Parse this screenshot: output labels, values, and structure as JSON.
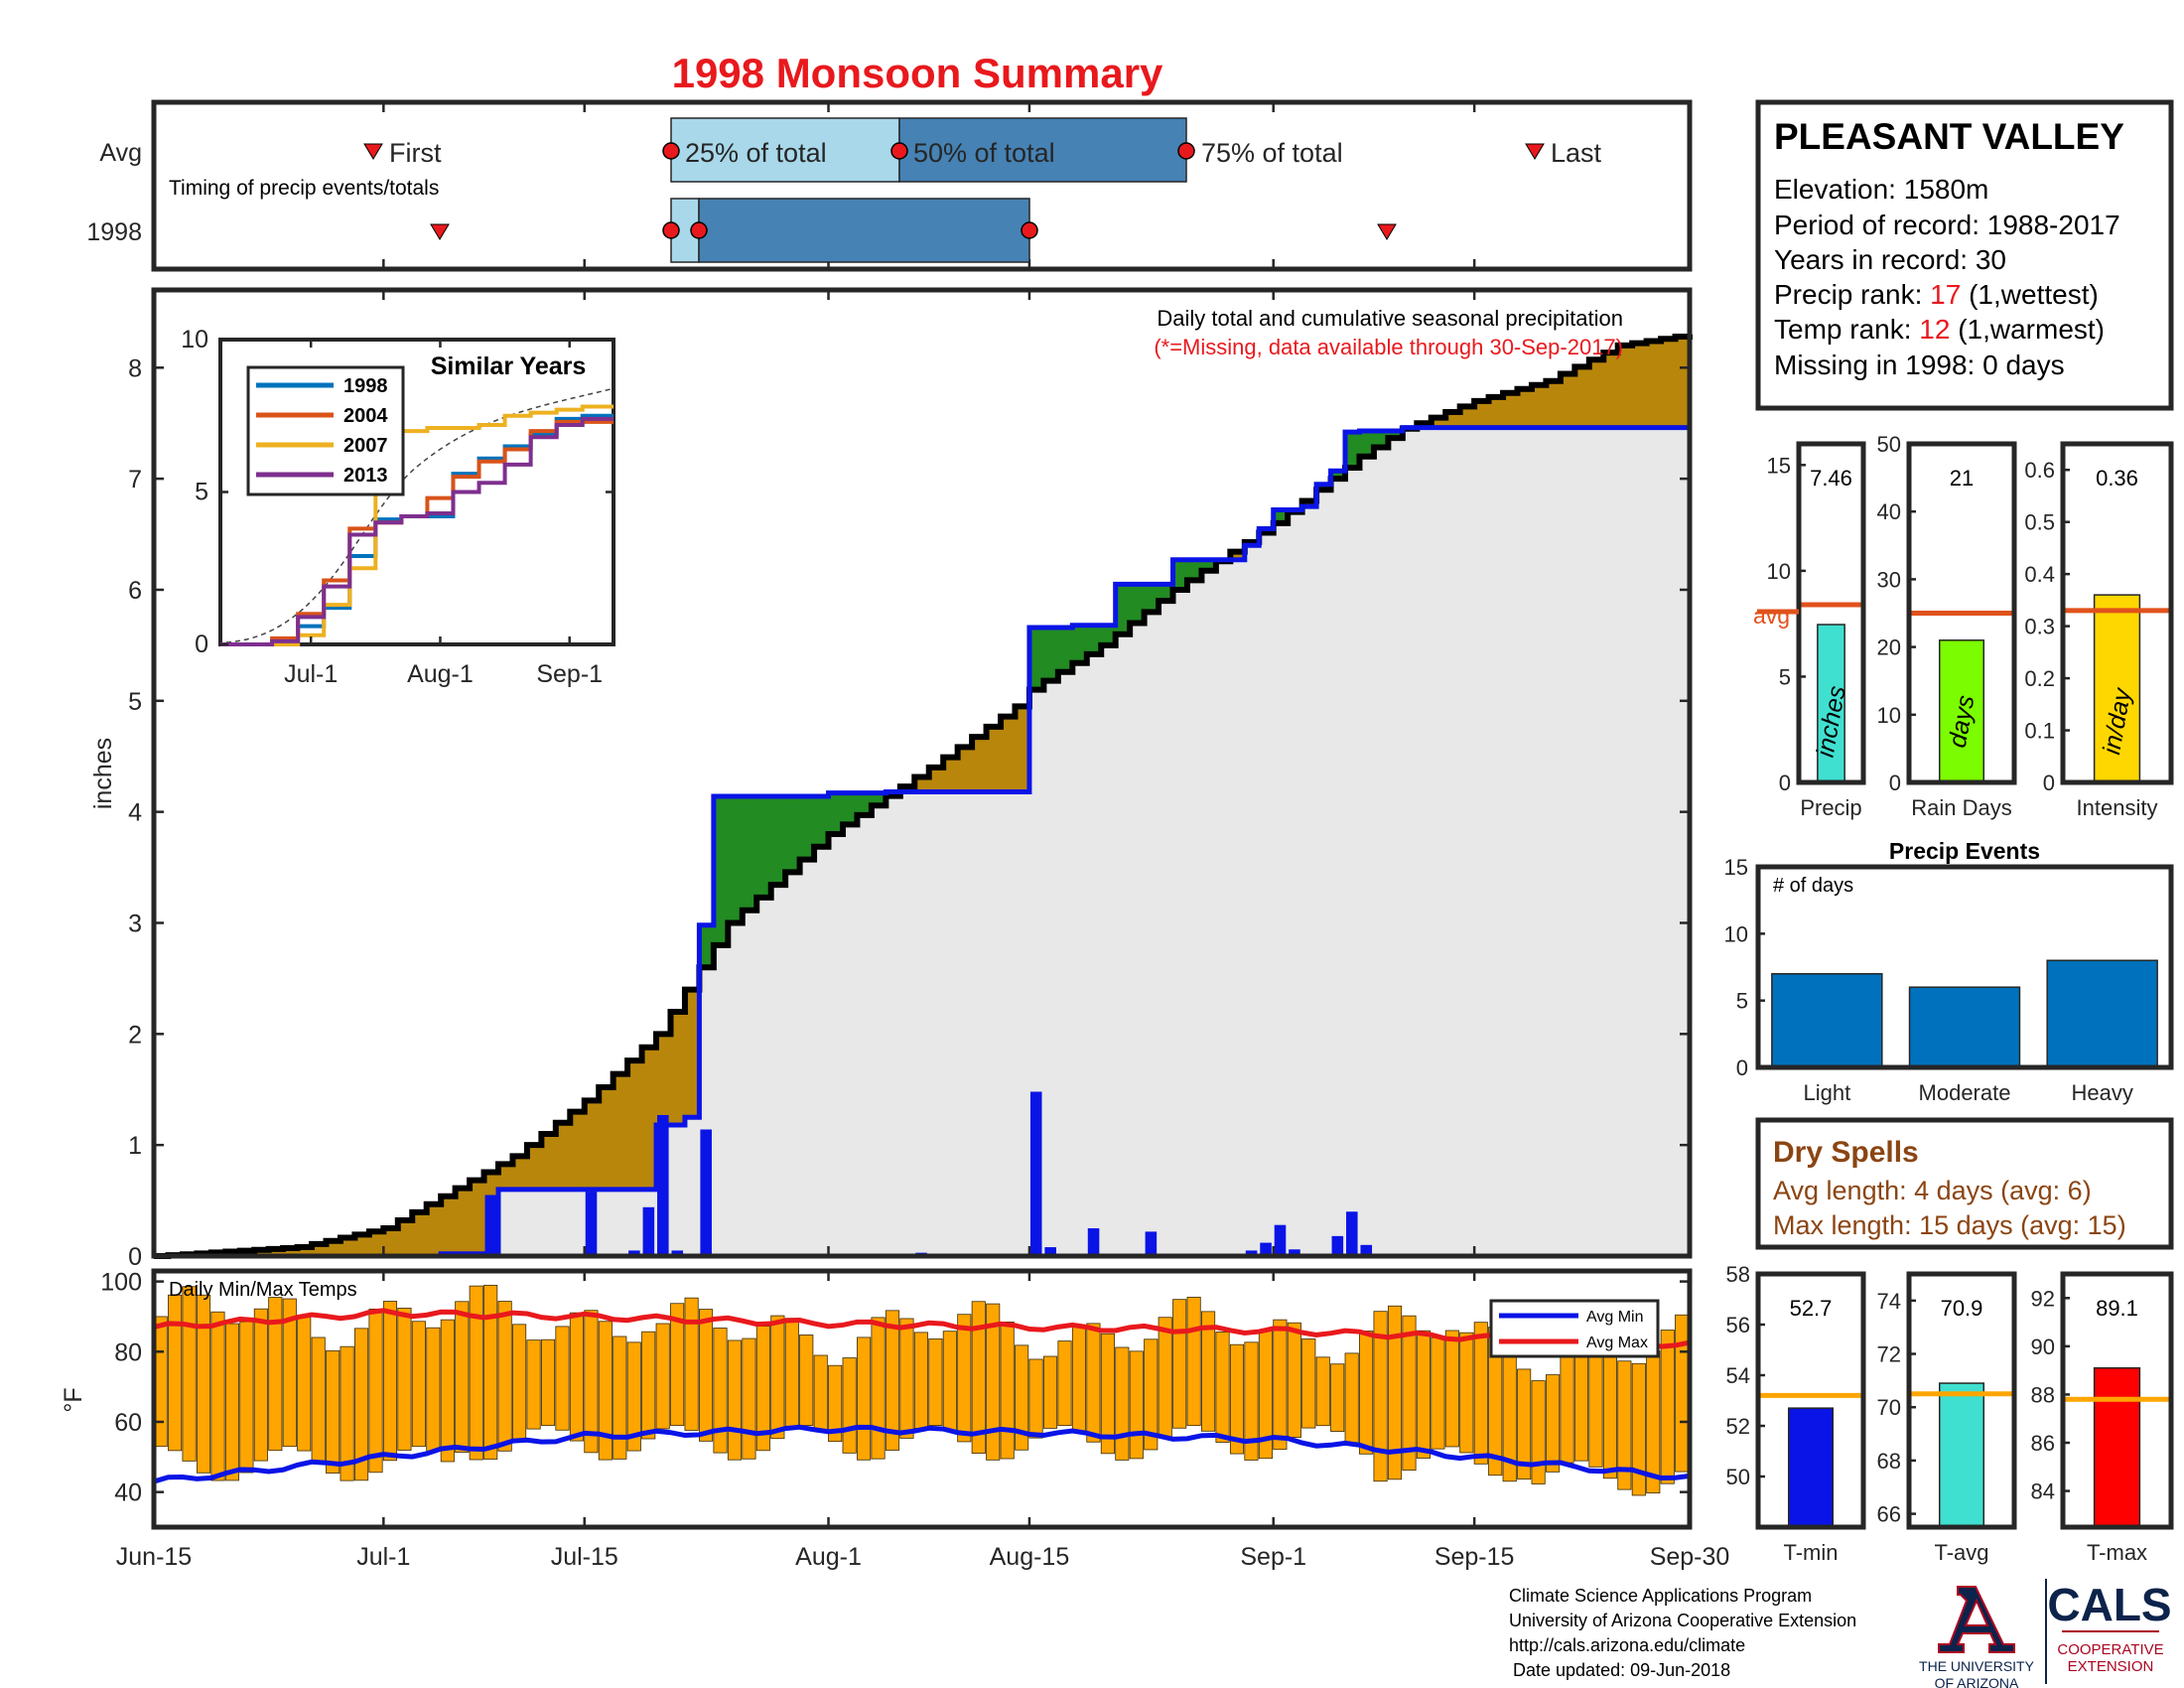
{
  "page_title": "1998 Monsoon Summary",
  "station": {
    "name": "PLEASANT VALLEY",
    "elevation": "Elevation: 1580m",
    "period": "Period of record: 1988-2017",
    "years": "Years in record: 30",
    "precip_rank_prefix": "Precip rank: ",
    "precip_rank_value": "17",
    "precip_rank_suffix": " (1,wettest)",
    "temp_rank_prefix": "Temp rank: ",
    "temp_rank_value": "12",
    "temp_rank_suffix": " (1,warmest)",
    "missing": "Missing in 1998: 0 days"
  },
  "colors": {
    "title_red": "#e8191d",
    "above_green": "#228b22",
    "below_brown": "#b8860b",
    "obs_blue": "#0a14e6",
    "bar_orange": "#ffa500",
    "avg_line": "#e0521b",
    "light_blue": "#a8d8ea",
    "mid_blue": "#4682b4",
    "dry_brown": "#8b4513"
  },
  "timing": {
    "title": "Timing of precip events/totals",
    "row_labels": [
      "Avg",
      "1998"
    ],
    "first_label": "First",
    "last_label": "Last",
    "pct25_label": "25% of total",
    "pct50_label": "50% of total",
    "pct75_label": "75% of total"
  },
  "axis_dates": [
    "Jun-15",
    "Jul-1",
    "Jul-15",
    "Aug-1",
    "Aug-15",
    "Sep-1",
    "Sep-15",
    "Sep-30"
  ],
  "main_chart": {
    "title": "Daily total and cumulative seasonal precipitation",
    "subtitle": "(*=Missing, data available through 30-Sep-2017)",
    "ylabel": "inches",
    "yticks": [
      "0",
      "1",
      "2",
      "3",
      "4",
      "5",
      "6",
      "7",
      "8"
    ]
  },
  "inset": {
    "title": "Similar Years",
    "yticks": [
      "0",
      "5",
      "10"
    ],
    "xticks": [
      "Jul-1",
      "Aug-1",
      "Sep-1"
    ]
  },
  "temps_chart": {
    "title": "Daily Min/Max Temps",
    "ylabel": "°F",
    "yticks": [
      "40",
      "60",
      "80",
      "100"
    ],
    "legend_min": "Avg Min",
    "legend_max": "Avg Max"
  },
  "stat_panels": {
    "avg_label": "avg",
    "precip": {
      "value": "7.46",
      "unit": "inches",
      "label": "Precip",
      "ticks": [
        "0",
        "5",
        "10",
        "15"
      ]
    },
    "raindays": {
      "value": "21",
      "unit": "days",
      "label": "Rain Days",
      "ticks": [
        "0",
        "10",
        "20",
        "30",
        "40",
        "50"
      ]
    },
    "intensity": {
      "value": "0.36",
      "unit": "in/day",
      "label": "Intensity",
      "ticks": [
        "0",
        "0.1",
        "0.2",
        "0.3",
        "0.4",
        "0.5",
        "0.6"
      ]
    }
  },
  "events": {
    "title": "Precip Events",
    "ylabel": "# of days",
    "ticks": [
      "0",
      "5",
      "10",
      "15"
    ],
    "categories": [
      "Light",
      "Moderate",
      "Heavy"
    ]
  },
  "dry_spells": {
    "title": "Dry Spells",
    "avg_length": "Avg length: 4 days (avg: 6)",
    "max_length": "Max length: 15 days (avg: 15)"
  },
  "temp_panels": {
    "tmin": {
      "value": "52.7",
      "label": "T-min",
      "ticks": [
        "50",
        "52",
        "54",
        "56",
        "58"
      ]
    },
    "tavg": {
      "value": "70.9",
      "label": "T-avg",
      "ticks": [
        "66",
        "68",
        "70",
        "72",
        "74"
      ]
    },
    "tmax": {
      "value": "89.1",
      "label": "T-max",
      "ticks": [
        "84",
        "86",
        "88",
        "90",
        "92"
      ]
    }
  },
  "footer": {
    "line1": "Climate Science Applications Program",
    "line2": "University of Arizona Cooperative Extension",
    "line3": "http://cals.arizona.edu/climate",
    "line4": "Date updated: 09-Jun-2018",
    "logo_ua_1": "THE UNIVERSITY",
    "logo_ua_2": "OF ARIZONA",
    "logo_cals": "CALS",
    "logo_coop_1": "COOPERATIVE",
    "logo_coop_2": "EXTENSION"
  },
  "chart_data": [
    {
      "type": "area",
      "title": "Daily total and cumulative seasonal precipitation",
      "ylabel": "inches",
      "ylim": [
        0,
        8.7
      ],
      "x_range": [
        "Jun-15",
        "Sep-30"
      ],
      "series": [
        {
          "name": "1998",
          "x": [
            "Jun-15",
            "Jun-30",
            "Jul-5",
            "Jul-9",
            "Jul-15",
            "Jul-20",
            "Jul-22",
            "Jul-23",
            "Jul-24",
            "Aug-1",
            "Aug-5",
            "Aug-14",
            "Aug-15",
            "Aug-18",
            "Aug-21",
            "Aug-25",
            "Aug-30",
            "Aug-31",
            "Sep-1",
            "Sep-3",
            "Sep-4",
            "Sep-5",
            "Sep-6",
            "Sep-7",
            "Sep-10",
            "Sep-30"
          ],
          "values": [
            0,
            0,
            0.02,
            0.6,
            0.6,
            1.18,
            1.25,
            2.98,
            4.14,
            4.17,
            4.18,
            4.18,
            5.66,
            5.68,
            6.05,
            6.27,
            6.4,
            6.55,
            6.72,
            6.75,
            6.95,
            7.07,
            7.42,
            7.43,
            7.46,
            7.46
          ]
        },
        {
          "name": "Avg",
          "x": [
            "Jun-15",
            "Jun-25",
            "Jul-1",
            "Jul-10",
            "Jul-15",
            "Jul-20",
            "Jul-25",
            "Aug-1",
            "Aug-8",
            "Aug-14",
            "Aug-15",
            "Aug-20",
            "Aug-25",
            "Sep-1",
            "Sep-7",
            "Sep-10",
            "Sep-15",
            "Sep-20",
            "Sep-25",
            "Sep-30"
          ],
          "values": [
            0,
            0.08,
            0.25,
            0.9,
            1.4,
            2.0,
            3.0,
            3.8,
            4.4,
            4.95,
            5.1,
            5.5,
            6.0,
            6.6,
            7.2,
            7.45,
            7.7,
            7.88,
            8.2,
            8.3
          ]
        }
      ]
    },
    {
      "type": "bar",
      "title": "Daily precipitation (1998)",
      "x": [
        "Jul-8",
        "Jul-15",
        "Jul-18",
        "Jul-19",
        "Jul-20",
        "Jul-21",
        "Jul-23",
        "Aug-7",
        "Aug-15",
        "Aug-16",
        "Aug-19",
        "Aug-23",
        "Aug-30",
        "Aug-31",
        "Sep-1",
        "Sep-2",
        "Sep-5",
        "Sep-6",
        "Sep-7"
      ],
      "values": [
        0.55,
        0.58,
        0.05,
        0.44,
        1.27,
        0.05,
        1.14,
        0.03,
        1.48,
        0.08,
        0.25,
        0.22,
        0.05,
        0.12,
        0.28,
        0.06,
        0.18,
        0.4,
        0.1
      ]
    },
    {
      "type": "line",
      "title": "Similar Years",
      "xticks": [
        "Jul-1",
        "Aug-1",
        "Sep-1"
      ],
      "ylim": [
        0,
        10
      ],
      "series": [
        {
          "name": "1998",
          "values": [
            0,
            0,
            0.1,
            0.6,
            1.2,
            2.9,
            4.1,
            4.2,
            4.2,
            5.6,
            6.1,
            6.5,
            6.9,
            7.4,
            7.5,
            7.5
          ]
        },
        {
          "name": "2004",
          "values": [
            0,
            0,
            0.2,
            1.0,
            2.1,
            3.8,
            4.0,
            4.2,
            4.8,
            5.5,
            6.0,
            6.4,
            7.0,
            7.3,
            7.3,
            7.3
          ]
        },
        {
          "name": "2007",
          "values": [
            0,
            0,
            0,
            0.3,
            1.3,
            2.5,
            6.5,
            7.0,
            7.1,
            7.1,
            7.2,
            7.5,
            7.6,
            7.7,
            7.8,
            7.8
          ]
        },
        {
          "name": "2013",
          "values": [
            0,
            0,
            0.1,
            0.9,
            1.9,
            3.6,
            4.0,
            4.2,
            4.3,
            5.0,
            5.3,
            5.9,
            6.8,
            7.2,
            7.4,
            7.4
          ]
        }
      ]
    },
    {
      "type": "bar",
      "title": "Daily Min/Max Temps",
      "ylabel": "°F",
      "ylim": [
        30,
        103
      ],
      "series": [
        {
          "name": "Avg Min",
          "x": [
            "Jun-15",
            "Jul-1",
            "Jul-15",
            "Aug-1",
            "Aug-15",
            "Sep-1",
            "Sep-15",
            "Sep-30"
          ],
          "values": [
            43,
            50,
            56,
            58,
            57,
            55,
            50,
            44
          ]
        },
        {
          "name": "Avg Max",
          "x": [
            "Jun-15",
            "Jul-1",
            "Jul-15",
            "Aug-1",
            "Aug-15",
            "Sep-1",
            "Sep-15",
            "Sep-30"
          ],
          "values": [
            87,
            91,
            90,
            88,
            87,
            86,
            84,
            82
          ]
        }
      ]
    },
    {
      "type": "bar",
      "categories": [
        "Precip"
      ],
      "values": [
        7.46
      ],
      "avg": 8.4,
      "ylim": [
        0,
        16
      ]
    },
    {
      "type": "bar",
      "categories": [
        "Rain Days"
      ],
      "values": [
        21
      ],
      "avg": 25,
      "ylim": [
        0,
        50
      ]
    },
    {
      "type": "bar",
      "categories": [
        "Intensity"
      ],
      "values": [
        0.36
      ],
      "avg": 0.33,
      "ylim": [
        0,
        0.65
      ]
    },
    {
      "type": "bar",
      "title": "Precip Events",
      "ylabel": "# of days",
      "categories": [
        "Light",
        "Moderate",
        "Heavy"
      ],
      "values": [
        7,
        6,
        8
      ],
      "ylim": [
        0,
        15
      ]
    },
    {
      "type": "bar",
      "categories": [
        "T-min"
      ],
      "values": [
        52.7
      ],
      "avg": 53.2,
      "ylim": [
        48,
        58
      ]
    },
    {
      "type": "bar",
      "categories": [
        "T-avg"
      ],
      "values": [
        70.9
      ],
      "avg": 70.5,
      "ylim": [
        65.5,
        75
      ]
    },
    {
      "type": "bar",
      "categories": [
        "T-max"
      ],
      "values": [
        89.1
      ],
      "avg": 87.8,
      "ylim": [
        82.5,
        93
      ]
    }
  ]
}
